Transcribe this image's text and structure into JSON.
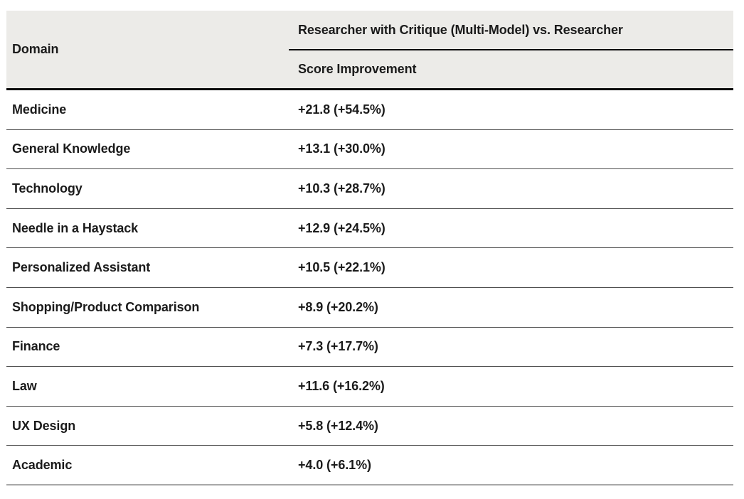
{
  "chart_data": {
    "type": "table",
    "title": "Researcher with Critique (Multi-Model) vs. Researcher — Score Improvement by Domain",
    "headers": {
      "domain": "Domain",
      "group": "Researcher with Critique (Multi-Model) vs. Researcher",
      "sub": "Score Improvement"
    },
    "columns": [
      "Domain",
      "Score Improvement"
    ],
    "rows": [
      {
        "domain": "Medicine",
        "score_improvement": "+21.8 (+54.5%)",
        "score_delta": 21.8,
        "percent_delta": 54.5
      },
      {
        "domain": "General Knowledge",
        "score_improvement": "+13.1 (+30.0%)",
        "score_delta": 13.1,
        "percent_delta": 30.0
      },
      {
        "domain": "Technology",
        "score_improvement": "+10.3 (+28.7%)",
        "score_delta": 10.3,
        "percent_delta": 28.7
      },
      {
        "domain": "Needle in a Haystack",
        "score_improvement": "+12.9 (+24.5%)",
        "score_delta": 12.9,
        "percent_delta": 24.5
      },
      {
        "domain": "Personalized Assistant",
        "score_improvement": "+10.5 (+22.1%)",
        "score_delta": 10.5,
        "percent_delta": 22.1
      },
      {
        "domain": "Shopping/Product Comparison",
        "score_improvement": "+8.9 (+20.2%)",
        "score_delta": 8.9,
        "percent_delta": 20.2
      },
      {
        "domain": "Finance",
        "score_improvement": "+7.3 (+17.7%)",
        "score_delta": 7.3,
        "percent_delta": 17.7
      },
      {
        "domain": "Law",
        "score_improvement": "+11.6 (+16.2%)",
        "score_delta": 11.6,
        "percent_delta": 16.2
      },
      {
        "domain": "UX Design",
        "score_improvement": "+5.8 (+12.4%)",
        "score_delta": 5.8,
        "percent_delta": 12.4
      },
      {
        "domain": "Academic",
        "score_improvement": "+4.0 (+6.1%)",
        "score_delta": 4.0,
        "percent_delta": 6.1
      }
    ]
  },
  "colors": {
    "header_background": "#ECEBE8",
    "text": "#1B1B1B",
    "strong_rule": "#0D0D0D",
    "row_rule": "#4F4F4F",
    "bottom_rule": "#A8A8A8"
  }
}
